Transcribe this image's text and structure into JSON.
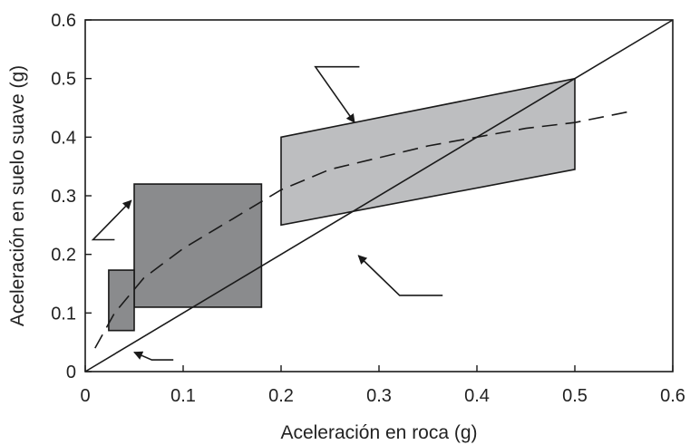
{
  "chart_data": {
    "type": "scatter",
    "xlabel": "Aceleración en roca (g)",
    "ylabel": "Aceleración en suelo suave (g)",
    "xlim": [
      0,
      0.6
    ],
    "ylim": [
      0,
      0.6
    ],
    "x_ticks": [
      "0",
      "0.1",
      "0.2",
      "0.3",
      "0.4",
      "0.5",
      "0.6"
    ],
    "y_ticks": [
      "0",
      "0.1",
      "0.2",
      "0.3",
      "0.4",
      "0.5",
      "0.6"
    ],
    "grid": false,
    "reference_line": {
      "style": "solid",
      "points": [
        [
          0,
          0
        ],
        [
          0.6,
          0.6
        ]
      ]
    },
    "trend_line": {
      "style": "dashed",
      "points": [
        [
          0.01,
          0.04
        ],
        [
          0.03,
          0.1
        ],
        [
          0.06,
          0.16
        ],
        [
          0.1,
          0.21
        ],
        [
          0.15,
          0.26
        ],
        [
          0.2,
          0.31
        ],
        [
          0.25,
          0.345
        ],
        [
          0.3,
          0.365
        ],
        [
          0.35,
          0.385
        ],
        [
          0.4,
          0.4
        ],
        [
          0.45,
          0.415
        ],
        [
          0.5,
          0.425
        ],
        [
          0.56,
          0.445
        ]
      ]
    },
    "regions": [
      {
        "name": "",
        "shade": "light",
        "color": "#bdbec0",
        "polygon": [
          [
            0.2,
            0.4
          ],
          [
            0.5,
            0.5
          ],
          [
            0.5,
            0.345
          ],
          [
            0.2,
            0.25
          ]
        ]
      },
      {
        "name": "",
        "shade": "dark",
        "color": "#8a8b8d",
        "polygon": [
          [
            0.05,
            0.11
          ],
          [
            0.18,
            0.11
          ],
          [
            0.18,
            0.32
          ],
          [
            0.05,
            0.32
          ]
        ]
      },
      {
        "name": "",
        "shade": "dark",
        "color": "#8a8b8d",
        "polygon": [
          [
            0.024,
            0.07
          ],
          [
            0.05,
            0.07
          ],
          [
            0.05,
            0.173
          ],
          [
            0.024,
            0.173
          ]
        ]
      }
    ],
    "callouts": [
      {
        "label": "",
        "line": [
          [
            0.28,
            0.52
          ],
          [
            0.235,
            0.52
          ],
          [
            0.275,
            0.425
          ]
        ]
      },
      {
        "label": "",
        "line": [
          [
            0.03,
            0.225
          ],
          [
            0.008,
            0.225
          ],
          [
            0.047,
            0.292
          ]
        ]
      },
      {
        "label": "",
        "line": [
          [
            0.09,
            0.02
          ],
          [
            0.068,
            0.02
          ],
          [
            0.05,
            0.033
          ]
        ]
      },
      {
        "label": "",
        "line": [
          [
            0.365,
            0.13
          ],
          [
            0.321,
            0.13
          ],
          [
            0.279,
            0.198
          ]
        ]
      }
    ]
  }
}
